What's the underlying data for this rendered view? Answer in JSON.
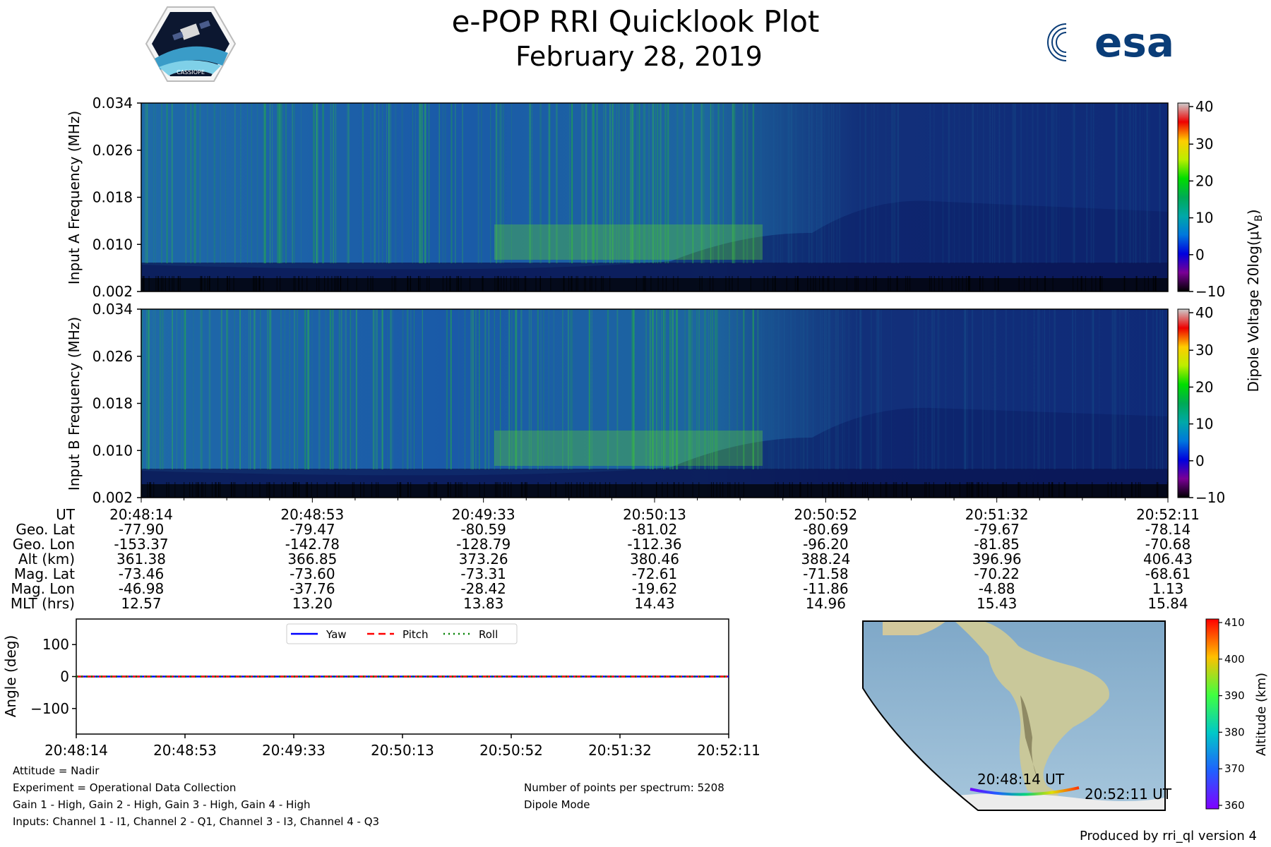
{
  "header": {
    "title": "e-POP RRI Quicklook Plot",
    "date": "February 28, 2019",
    "logo_left_text": "CASSIOPE",
    "logo_right_text": "esa",
    "logo_right_accent": "#003366"
  },
  "chart_data": [
    {
      "type": "heatmap",
      "name_id": "spectrogram-a",
      "ylabel": "Input A Frequency (MHz)",
      "yticks": [
        "0.002",
        "0.010",
        "0.018",
        "0.026",
        "0.034"
      ],
      "ylim": [
        0.002,
        0.034
      ],
      "colormap": "nipy_spectral",
      "colorbar": {
        "label": "Dipole Voltage 20log(μV",
        "label_sub": "B",
        "label_end": ")",
        "ticks": [
          -10,
          0,
          10,
          20,
          30,
          40
        ]
      }
    },
    {
      "type": "heatmap",
      "name_id": "spectrogram-b",
      "ylabel": "Input B Frequency (MHz)",
      "yticks": [
        "0.002",
        "0.010",
        "0.018",
        "0.026",
        "0.034"
      ],
      "ylim": [
        0.002,
        0.034
      ],
      "colormap": "nipy_spectral",
      "colorbar": {
        "ticks": [
          -10,
          0,
          10,
          20,
          30,
          40
        ]
      }
    },
    {
      "type": "line",
      "name_id": "attitude-plot",
      "ylabel": "Angle (deg)",
      "yticks": [
        -100,
        0,
        100
      ],
      "ylim": [
        -180,
        180
      ],
      "x": [
        "20:48:14",
        "20:48:53",
        "20:49:33",
        "20:50:13",
        "20:50:52",
        "20:51:32",
        "20:52:11"
      ],
      "series": [
        {
          "name": "Yaw",
          "color": "#0000ff",
          "style": "solid",
          "values": [
            0,
            0,
            0,
            0,
            0,
            0,
            0
          ]
        },
        {
          "name": "Pitch",
          "color": "#ff0000",
          "style": "dashed",
          "values": [
            0,
            0,
            0,
            0,
            0,
            0,
            0
          ]
        },
        {
          "name": "Roll",
          "color": "#008000",
          "style": "dotted",
          "values": [
            0,
            0,
            0,
            0,
            0,
            0,
            0
          ]
        }
      ],
      "legend": "top-center"
    },
    {
      "type": "map",
      "name_id": "orbit-map",
      "start_label": "20:48:14 UT",
      "end_label": "20:52:11 UT",
      "colorbar": {
        "label": "Altitude (km)",
        "ticks": [
          360,
          370,
          380,
          390,
          400,
          410
        ]
      }
    }
  ],
  "ephemeris": {
    "rows": [
      {
        "label": "UT",
        "values": [
          "20:48:14",
          "20:48:53",
          "20:49:33",
          "20:50:13",
          "20:50:52",
          "20:51:32",
          "20:52:11"
        ]
      },
      {
        "label": "Geo. Lat",
        "values": [
          "-77.90",
          "-79.47",
          "-80.59",
          "-81.02",
          "-80.69",
          "-79.67",
          "-78.14"
        ]
      },
      {
        "label": "Geo. Lon",
        "values": [
          "-153.37",
          "-142.78",
          "-128.79",
          "-112.36",
          "-96.20",
          "-81.85",
          "-70.68"
        ]
      },
      {
        "label": "Alt (km)",
        "values": [
          "361.38",
          "366.85",
          "373.26",
          "380.46",
          "388.24",
          "396.96",
          "406.43"
        ]
      },
      {
        "label": "Mag. Lat",
        "values": [
          "-73.46",
          "-73.60",
          "-73.31",
          "-72.61",
          "-71.58",
          "-70.22",
          "-68.61"
        ]
      },
      {
        "label": "Mag. Lon",
        "values": [
          "-46.98",
          "-37.76",
          "-28.42",
          "-19.62",
          "-11.86",
          "-4.88",
          "1.13"
        ]
      },
      {
        "label": "MLT (hrs)",
        "values": [
          "12.57",
          "13.20",
          "13.83",
          "14.43",
          "14.96",
          "15.43",
          "15.84"
        ]
      }
    ]
  },
  "notes": {
    "attitude": "Attitude = Nadir",
    "experiment": "Experiment = Operational Data Collection",
    "gain": "Gain 1 - High, Gain 2 - High, Gain 3 - High, Gain 4 - High",
    "inputs": "Inputs: Channel 1 - I1, Channel 2 - Q1, Channel 3 - I3, Channel 4 - Q3",
    "points": "Number of points per spectrum: 5208",
    "mode": "Dipole Mode",
    "produced": "Produced by rri_ql version 4"
  }
}
